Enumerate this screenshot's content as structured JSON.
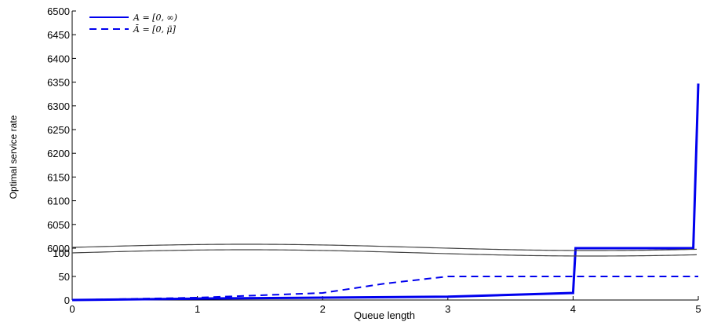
{
  "chart_data": {
    "type": "line",
    "xlabel": "Queue length",
    "ylabel": "Optimal service rate",
    "x_ticks": [
      "0",
      "1",
      "2",
      "3",
      "4",
      "5"
    ],
    "y_ticks_upper": [
      "6000",
      "6050",
      "6100",
      "6150",
      "6200",
      "6250",
      "6300",
      "6350",
      "6400",
      "6450",
      "6500"
    ],
    "y_ticks_lower": [
      "0",
      "50",
      "100"
    ],
    "xlim": [
      0,
      5
    ],
    "ylim_lower": [
      0,
      100
    ],
    "ylim_upper": [
      6000,
      6500
    ],
    "broken_y_axis": true,
    "grid": false,
    "legend_position": "top-left",
    "series": [
      {
        "name": "A = [0, ∞)",
        "style": "solid",
        "color": "#0000ee",
        "x": [
          0,
          1,
          2,
          3,
          4,
          4.02,
          4.96,
          5
        ],
        "y": [
          0,
          3,
          5,
          7,
          15,
          6000,
          6000,
          6347
        ]
      },
      {
        "name": "Ā = [0, μ̄]",
        "style": "dashed",
        "color": "#0000ee",
        "x": [
          0,
          1,
          2,
          2.5,
          3,
          4,
          5
        ],
        "y": [
          0,
          5,
          15,
          35,
          50,
          50,
          50
        ]
      }
    ]
  }
}
